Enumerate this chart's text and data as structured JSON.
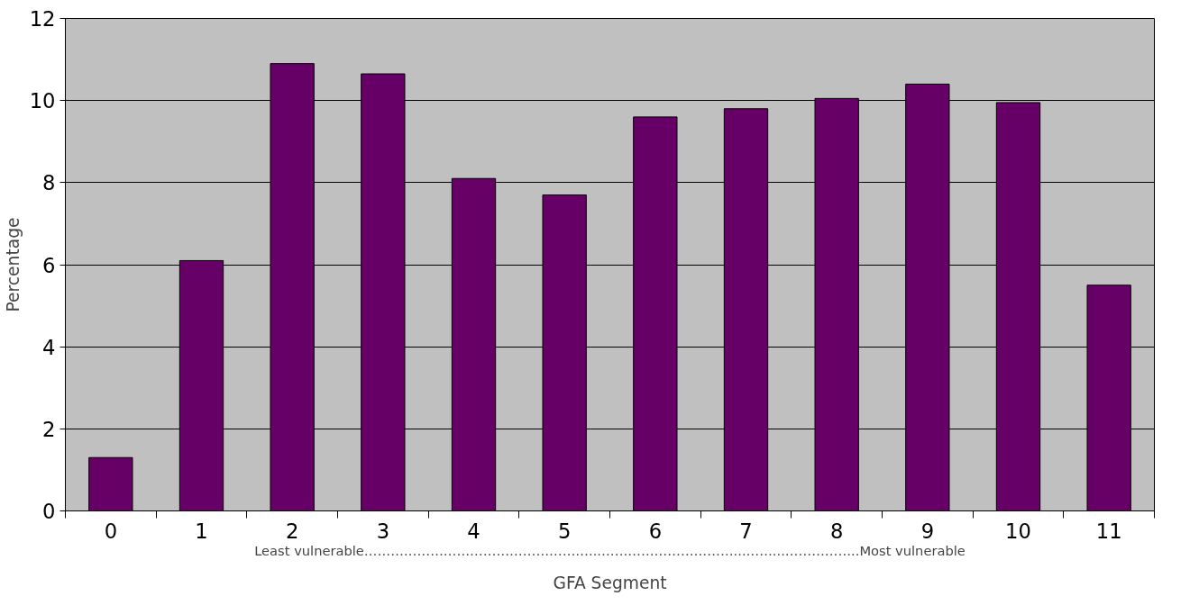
{
  "chart_data": {
    "type": "bar",
    "xlabel": "GFA Segment",
    "ylabel": "Percentage",
    "categories": [
      "0",
      "1",
      "2",
      "3",
      "4",
      "5",
      "6",
      "7",
      "8",
      "9",
      "10",
      "11"
    ],
    "values": [
      1.3,
      6.1,
      10.9,
      10.65,
      8.1,
      7.7,
      9.6,
      9.8,
      10.05,
      10.4,
      9.95,
      5.5
    ],
    "color": "#660066",
    "ylim": [
      0,
      12
    ],
    "yticks": [
      0,
      2,
      4,
      6,
      8,
      10,
      12
    ],
    "grid": "y",
    "annotations": [
      "Least vulnerable……………………………………………...…………………………...……...……………..Most vulnerable"
    ]
  }
}
